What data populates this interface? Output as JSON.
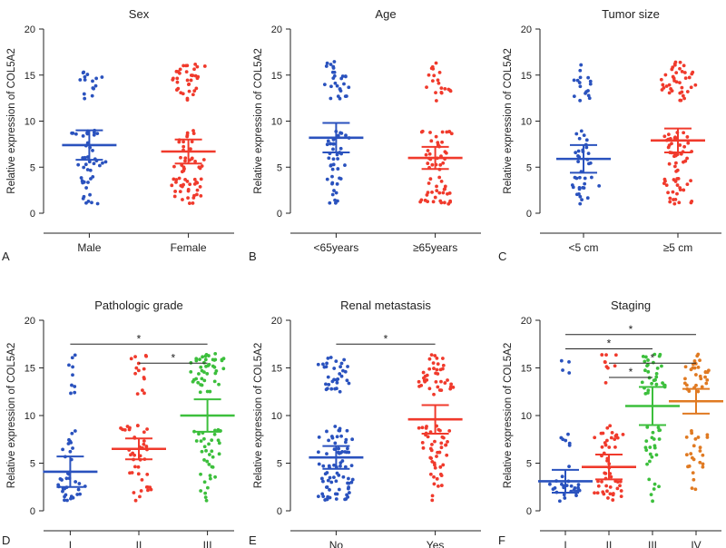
{
  "colors": {
    "blue": "#2a52be",
    "red": "#f03a2c",
    "green": "#3cbf3c",
    "orange": "#e07a22",
    "axis": "#222222"
  },
  "chart_data": [
    {
      "panel": "A",
      "title": "Sex",
      "type": "scatter",
      "ylabel": "Relative expression of COL5A2",
      "ylim": [
        0,
        20
      ],
      "yticks": [
        "0",
        "5",
        "10",
        "15",
        "20"
      ],
      "groups": [
        {
          "name": "Male",
          "color": "blue",
          "n": 60,
          "dist": [
            0.25,
            0.5,
            0.25
          ],
          "mean": 7.4,
          "err": 1.6
        },
        {
          "name": "Female",
          "color": "red",
          "n": 95,
          "dist": [
            0.33,
            0.3,
            0.37
          ],
          "mean": 6.7,
          "err": 1.3
        }
      ],
      "significance": []
    },
    {
      "panel": "B",
      "title": "Age",
      "type": "scatter",
      "ylabel": "Relative expression of COL5A2",
      "ylim": [
        0,
        20
      ],
      "yticks": [
        "0",
        "5",
        "10",
        "15",
        "20"
      ],
      "groups": [
        {
          "name": "<65years",
          "color": "blue",
          "n": 70,
          "dist": [
            0.2,
            0.4,
            0.4
          ],
          "mean": 8.2,
          "err": 1.6
        },
        {
          "name": "≥65years",
          "color": "red",
          "n": 80,
          "dist": [
            0.35,
            0.4,
            0.25
          ],
          "mean": 6.0,
          "err": 1.2
        }
      ],
      "significance": []
    },
    {
      "panel": "C",
      "title": "Tumor size",
      "type": "scatter",
      "ylabel": "Relative expression of COL5A2",
      "ylim": [
        0,
        20
      ],
      "yticks": [
        "0",
        "5",
        "10",
        "15",
        "20"
      ],
      "groups": [
        {
          "name": "<5 cm",
          "color": "blue",
          "n": 55,
          "dist": [
            0.35,
            0.35,
            0.3
          ],
          "mean": 5.9,
          "err": 1.5
        },
        {
          "name": "≥5 cm",
          "color": "red",
          "n": 100,
          "dist": [
            0.25,
            0.35,
            0.4
          ],
          "mean": 7.9,
          "err": 1.3
        }
      ],
      "significance": []
    },
    {
      "panel": "D",
      "title": "Pathologic grade",
      "type": "scatter",
      "ylabel": "Relative expression of COL5A2",
      "ylim": [
        0,
        20
      ],
      "yticks": [
        "0",
        "5",
        "10",
        "15",
        "20"
      ],
      "groups": [
        {
          "name": "I",
          "color": "blue",
          "n": 45,
          "dist": [
            0.55,
            0.25,
            0.2
          ],
          "mean": 4.1,
          "err": 1.6
        },
        {
          "name": "II",
          "color": "red",
          "n": 55,
          "dist": [
            0.25,
            0.5,
            0.25
          ],
          "mean": 6.5,
          "err": 1.1
        },
        {
          "name": "III",
          "color": "green",
          "n": 80,
          "dist": [
            0.12,
            0.33,
            0.55
          ],
          "mean": 10.0,
          "err": 1.7
        }
      ],
      "significance": [
        {
          "from": 0,
          "to": 2,
          "y": 17.5,
          "label": "*"
        },
        {
          "from": 1,
          "to": 2,
          "y": 15.5,
          "label": "*"
        }
      ]
    },
    {
      "panel": "E",
      "title": "Renal metastasis",
      "type": "scatter",
      "ylabel": "Relative expression of COL5A2",
      "ylim": [
        0,
        20
      ],
      "yticks": [
        "0",
        "5",
        "10",
        "15",
        "20"
      ],
      "groups": [
        {
          "name": "No",
          "color": "blue",
          "n": 110,
          "dist": [
            0.35,
            0.35,
            0.3
          ],
          "mean": 5.6,
          "err": 1.2
        },
        {
          "name": "Yes",
          "color": "red",
          "n": 85,
          "dist": [
            0.12,
            0.43,
            0.45
          ],
          "mean": 9.6,
          "err": 1.5
        }
      ],
      "significance": [
        {
          "from": 0,
          "to": 1,
          "y": 17.5,
          "label": "*"
        }
      ]
    },
    {
      "panel": "F",
      "title": "Staging",
      "type": "scatter",
      "ylabel": "Relative expression of COL5A2",
      "ylim": [
        0,
        20
      ],
      "yticks": [
        "0",
        "5",
        "10",
        "15",
        "20"
      ],
      "groups": [
        {
          "name": "I",
          "color": "blue",
          "n": 35,
          "dist": [
            0.7,
            0.2,
            0.1
          ],
          "mean": 3.1,
          "err": 1.2
        },
        {
          "name": "II",
          "color": "red",
          "n": 60,
          "dist": [
            0.45,
            0.4,
            0.15
          ],
          "mean": 4.6,
          "err": 1.3
        },
        {
          "name": "III",
          "color": "green",
          "n": 55,
          "dist": [
            0.1,
            0.35,
            0.55
          ],
          "mean": 11.0,
          "err": 2.0
        },
        {
          "name": "IV",
          "color": "orange",
          "n": 55,
          "dist": [
            0.08,
            0.37,
            0.55
          ],
          "mean": 11.5,
          "err": 1.3
        }
      ],
      "significance": [
        {
          "from": 0,
          "to": 3,
          "y": 18.5,
          "label": "*"
        },
        {
          "from": 0,
          "to": 2,
          "y": 17.0,
          "label": "*"
        },
        {
          "from": 1,
          "to": 3,
          "y": 15.5,
          "label": "*"
        },
        {
          "from": 1,
          "to": 2,
          "y": 14.0,
          "label": "*"
        }
      ]
    }
  ]
}
